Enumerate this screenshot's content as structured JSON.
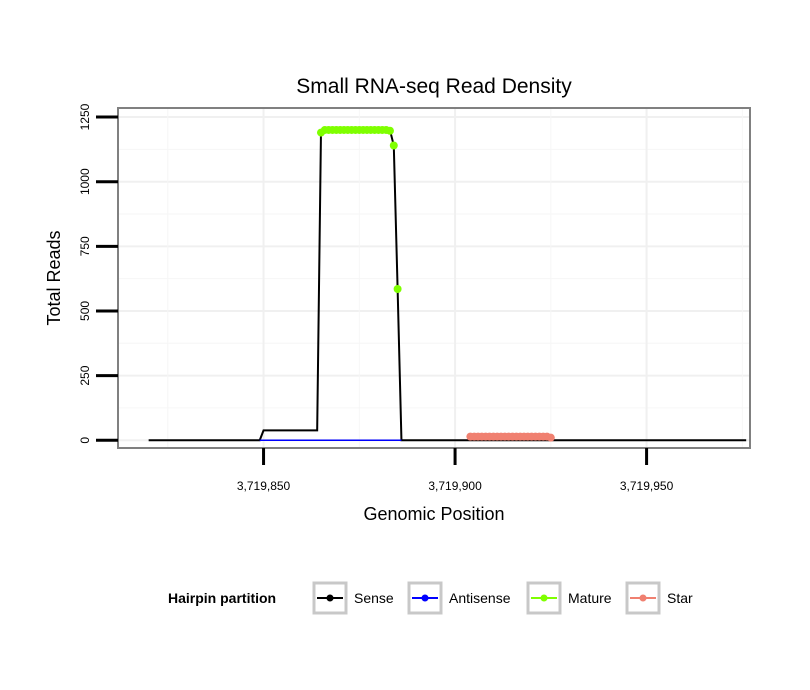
{
  "chart_data": {
    "type": "line",
    "title": "Small RNA-seq Read Density",
    "xlabel": "Genomic Position",
    "ylabel": "Total Reads",
    "xlim": [
      3719812,
      3719977
    ],
    "ylim": [
      -30,
      1285
    ],
    "x_ticks": [
      3719850,
      3719900,
      3719950
    ],
    "x_tick_labels": [
      "3,719,850",
      "3,719,900",
      "3,719,950"
    ],
    "y_ticks": [
      0,
      250,
      500,
      750,
      1000,
      1250
    ],
    "y_tick_labels": [
      "0",
      "250",
      "500",
      "750",
      "1000",
      "1250"
    ],
    "grid": true,
    "legend": {
      "title": "Hairpin partition",
      "position": "bottom",
      "entries": [
        "Sense",
        "Antisense",
        "Mature",
        "Star"
      ]
    },
    "colors": {
      "Sense": "#000000",
      "Antisense": "#0000ff",
      "Mature": "#7fff00",
      "Star": "#f08070"
    },
    "series": [
      {
        "name": "Sense",
        "type": "line",
        "x": [
          3719820,
          3719849,
          3719850,
          3719864,
          3719865,
          3719883,
          3719884,
          3719885,
          3719886,
          3719976
        ],
        "y": [
          0,
          0,
          38,
          38,
          1200,
          1200,
          1140,
          585,
          0,
          0
        ]
      },
      {
        "name": "Antisense",
        "type": "line",
        "x": [
          3719849,
          3719886
        ],
        "y": [
          0,
          0
        ]
      },
      {
        "name": "Mature",
        "type": "points",
        "x": [
          3719865,
          3719866,
          3719867,
          3719868,
          3719869,
          3719870,
          3719871,
          3719872,
          3719873,
          3719874,
          3719875,
          3719876,
          3719877,
          3719878,
          3719879,
          3719880,
          3719881,
          3719882,
          3719883,
          3719884,
          3719885
        ],
        "y": [
          1190,
          1200,
          1200,
          1200,
          1200,
          1200,
          1200,
          1200,
          1200,
          1200,
          1200,
          1200,
          1200,
          1200,
          1200,
          1200,
          1200,
          1200,
          1197,
          1140,
          585
        ]
      },
      {
        "name": "Star",
        "type": "points",
        "x": [
          3719904,
          3719905,
          3719906,
          3719907,
          3719908,
          3719909,
          3719910,
          3719911,
          3719912,
          3719913,
          3719914,
          3719915,
          3719916,
          3719917,
          3719918,
          3719919,
          3719920,
          3719921,
          3719922,
          3719923,
          3719924,
          3719925
        ],
        "y": [
          14,
          14,
          14,
          14,
          14,
          14,
          14,
          14,
          14,
          14,
          14,
          14,
          14,
          14,
          14,
          14,
          14,
          14,
          14,
          14,
          14,
          10
        ]
      }
    ]
  }
}
